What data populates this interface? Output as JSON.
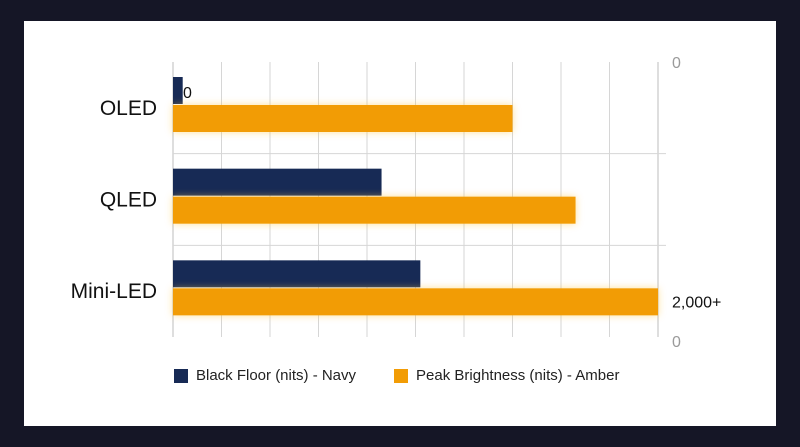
{
  "chart_data": {
    "type": "bar",
    "orientation": "horizontal",
    "categories": [
      "OLED",
      "QLED",
      "Mini-LED"
    ],
    "series": [
      {
        "name": "Black Floor (nits) - Navy",
        "values": [
          0.02,
          0.43,
          0.51
        ],
        "color": "#172a55"
      },
      {
        "name": "Peak Brightness (nits) - Amber",
        "values": [
          0.7,
          0.83,
          1.0
        ],
        "color": "#f29c05"
      }
    ],
    "data_labels": {
      "min": "0",
      "max": "2,000+"
    },
    "axis_end_labels": {
      "top": "0",
      "bottom": "0"
    },
    "xlim": [
      0,
      1
    ],
    "grid": true,
    "legend_position": "bottom",
    "glow_color": "#ffc640"
  }
}
